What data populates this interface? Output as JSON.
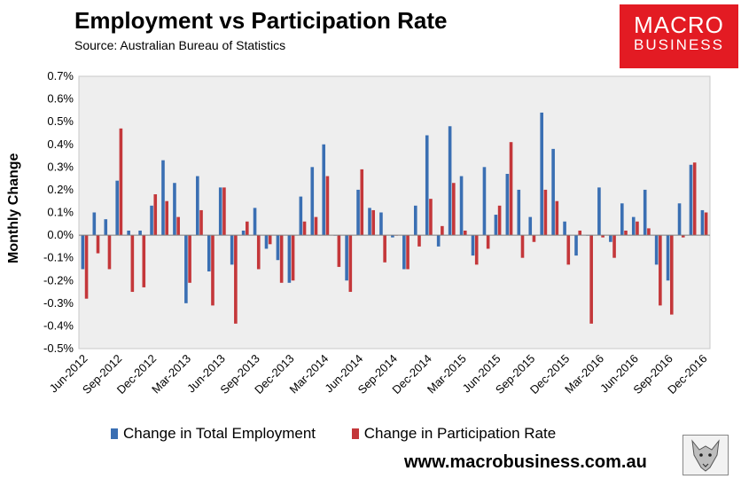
{
  "header": {
    "title": "Employment vs Participation Rate",
    "source": "Source: Australian Bureau of Statistics"
  },
  "logo": {
    "line1": "MACRO",
    "line2": "BUSINESS"
  },
  "footer": {
    "url": "www.macrobusiness.com.au"
  },
  "colors": {
    "employment": "#3a6fb3",
    "participation": "#c4373a",
    "plot_bg": "#eeeeee",
    "brand": "#e31b23"
  },
  "chart_data": {
    "type": "bar",
    "title": "Employment vs Participation Rate",
    "ylabel": "Monthly Change",
    "xlabel": "",
    "ylim": [
      -0.5,
      0.7
    ],
    "y_ticks": [
      "-0.5%",
      "-0.4%",
      "-0.3%",
      "-0.2%",
      "-0.1%",
      "0.0%",
      "0.1%",
      "0.2%",
      "0.3%",
      "0.4%",
      "0.5%",
      "0.6%",
      "0.7%"
    ],
    "x_tick_labels": [
      "Jun-2012",
      "Sep-2012",
      "Dec-2012",
      "Mar-2013",
      "Jun-2013",
      "Sep-2013",
      "Dec-2013",
      "Mar-2014",
      "Jun-2014",
      "Sep-2014",
      "Dec-2014",
      "Mar-2015",
      "Jun-2015",
      "Sep-2015",
      "Dec-2015",
      "Mar-2016",
      "Jun-2016",
      "Sep-2016",
      "Dec-2016"
    ],
    "categories": [
      "Jun-2012",
      "Jul-2012",
      "Aug-2012",
      "Sep-2012",
      "Oct-2012",
      "Nov-2012",
      "Dec-2012",
      "Jan-2013",
      "Feb-2013",
      "Mar-2013",
      "Apr-2013",
      "May-2013",
      "Jun-2013",
      "Jul-2013",
      "Aug-2013",
      "Sep-2013",
      "Oct-2013",
      "Nov-2013",
      "Dec-2013",
      "Jan-2014",
      "Feb-2014",
      "Mar-2014",
      "Apr-2014",
      "May-2014",
      "Jun-2014",
      "Jul-2014",
      "Aug-2014",
      "Sep-2014",
      "Oct-2014",
      "Nov-2014",
      "Dec-2014",
      "Jan-2015",
      "Feb-2015",
      "Mar-2015",
      "Apr-2015",
      "May-2015",
      "Jun-2015",
      "Jul-2015",
      "Aug-2015",
      "Sep-2015",
      "Oct-2015",
      "Nov-2015",
      "Dec-2015",
      "Jan-2016",
      "Feb-2016",
      "Mar-2016",
      "Apr-2016",
      "May-2016",
      "Jun-2016",
      "Jul-2016",
      "Aug-2016",
      "Sep-2016",
      "Oct-2016",
      "Nov-2016",
      "Dec-2016"
    ],
    "series": [
      {
        "name": "Change in Total Employment",
        "values": [
          -0.15,
          0.1,
          0.07,
          0.24,
          0.02,
          0.02,
          0.13,
          0.33,
          0.23,
          -0.3,
          0.26,
          -0.16,
          0.21,
          -0.13,
          0.02,
          0.12,
          -0.06,
          -0.11,
          -0.21,
          0.17,
          0.3,
          0.4,
          0.0,
          -0.2,
          0.2,
          0.12,
          0.1,
          -0.01,
          -0.15,
          0.13,
          0.44,
          -0.05,
          0.48,
          0.26,
          -0.09,
          0.3,
          0.09,
          0.27,
          0.2,
          0.08,
          0.54,
          0.38,
          0.06,
          -0.09,
          0.0,
          0.21,
          -0.03,
          0.14,
          0.08,
          0.2,
          -0.13,
          -0.2,
          0.14,
          0.31,
          0.11
        ]
      },
      {
        "name": "Change in Participation Rate",
        "values": [
          -0.28,
          -0.08,
          -0.15,
          0.47,
          -0.25,
          -0.23,
          0.18,
          0.15,
          0.08,
          -0.21,
          0.11,
          -0.31,
          0.21,
          -0.39,
          0.06,
          -0.15,
          -0.04,
          -0.21,
          -0.2,
          0.06,
          0.08,
          0.26,
          -0.14,
          -0.25,
          0.29,
          0.11,
          -0.12,
          0.0,
          -0.15,
          -0.05,
          0.16,
          0.04,
          0.23,
          0.02,
          -0.13,
          -0.06,
          0.13,
          0.41,
          -0.1,
          -0.03,
          0.2,
          0.15,
          -0.13,
          0.02,
          -0.39,
          -0.01,
          -0.1,
          0.02,
          0.06,
          0.03,
          -0.31,
          -0.35,
          -0.01,
          0.32,
          0.1
        ]
      }
    ],
    "legend_position": "bottom",
    "grid": false
  }
}
